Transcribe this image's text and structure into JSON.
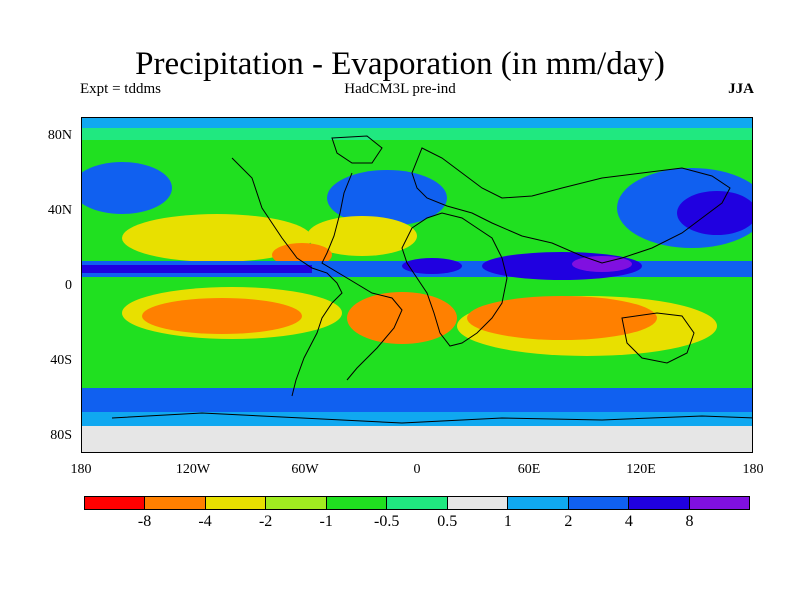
{
  "header": {
    "title": "Precipitation - Evaporation (in mm/day)",
    "experiment": "Expt = tddms",
    "model": "HadCM3L pre-ind",
    "season": "JJA"
  },
  "map": {
    "projection": "cylindrical equidistant",
    "lat_ticks": [
      "80N",
      "40N",
      "0",
      "40S",
      "80S"
    ],
    "lon_ticks": [
      "180",
      "120W",
      "60W",
      "0",
      "60E",
      "120E",
      "180"
    ],
    "land_outline_color": "#000000"
  },
  "colorbar": {
    "colors": [
      "#ff0000",
      "#ff8000",
      "#e8e000",
      "#a0ec20",
      "#20e020",
      "#20e880",
      "#e6e6e6",
      "#10a8f0",
      "#1060f0",
      "#2000e0",
      "#8010e0"
    ],
    "labels": [
      "-8",
      "-4",
      "-2",
      "-1",
      "-0.5",
      "0.5",
      "1",
      "2",
      "4",
      "8"
    ]
  }
}
